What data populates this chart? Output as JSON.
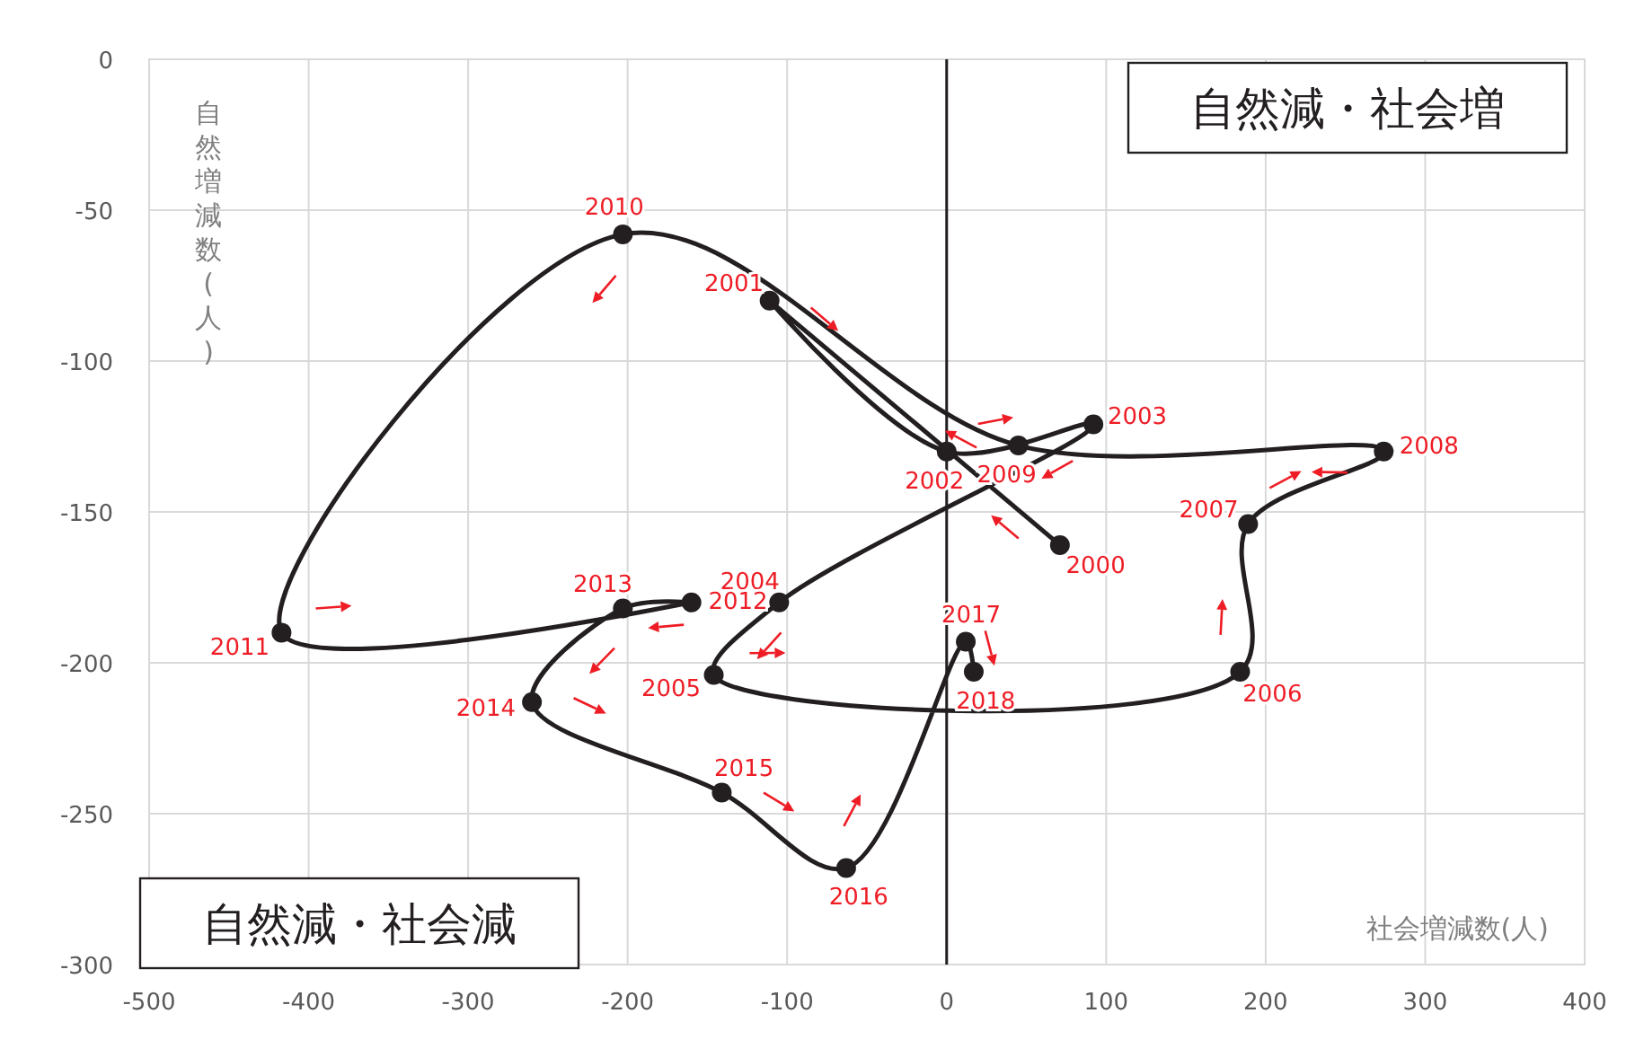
{
  "chart_data": {
    "type": "line",
    "xlabel": "社会増減数(人)",
    "ylabel": "自然増減数(人)",
    "xlim": [
      -500,
      400
    ],
    "xticks": [
      -500,
      -400,
      -300,
      -200,
      -100,
      0,
      100,
      200,
      300,
      400
    ],
    "ylim": [
      -300,
      0
    ],
    "yticks": [
      -300,
      -250,
      -200,
      -150,
      -100,
      -50,
      0
    ],
    "grid": true,
    "marker": "circle",
    "line_style": "solid",
    "series": [
      {
        "color": "#231f20",
        "x": [
          71,
          -111,
          0,
          92,
          -105,
          -146,
          184,
          189,
          274,
          45,
          -203,
          -417,
          -160,
          -203,
          -260,
          -141,
          -63,
          12,
          17
        ],
        "values": [
          -161,
          -80,
          -130,
          -121,
          -180,
          -204,
          -203,
          -154,
          -130,
          -128,
          -58,
          -190,
          -180,
          -182,
          -213,
          -243,
          -268,
          -193,
          -203
        ]
      }
    ],
    "ref_lines": [
      {
        "axis": "x",
        "value": 0,
        "color": "#231f20"
      }
    ],
    "annotations": [
      "自然減・社会増",
      "自然減・社会減",
      {
        "text": "2000",
        "x": 71,
        "y": -161
      },
      {
        "text": "2001",
        "x": -111,
        "y": -80
      },
      {
        "text": "2002",
        "x": 0,
        "y": -130
      },
      {
        "text": "2003",
        "x": 92,
        "y": -121
      },
      {
        "text": "2004",
        "x": -105,
        "y": -180
      },
      {
        "text": "2005",
        "x": -146,
        "y": -204
      },
      {
        "text": "2006",
        "x": 184,
        "y": -203
      },
      {
        "text": "2007",
        "x": 189,
        "y": -154
      },
      {
        "text": "2008",
        "x": 274,
        "y": -130
      },
      {
        "text": "2009",
        "x": 45,
        "y": -128
      },
      {
        "text": "2010",
        "x": -203,
        "y": -58
      },
      {
        "text": "2011",
        "x": -417,
        "y": -190
      },
      {
        "text": "2012",
        "x": -160,
        "y": -180
      },
      {
        "text": "2013",
        "x": -203,
        "y": -182
      },
      {
        "text": "2014",
        "x": -260,
        "y": -213
      },
      {
        "text": "2015",
        "x": -141,
        "y": -243
      },
      {
        "text": "2016",
        "x": -63,
        "y": -268
      },
      {
        "text": "2017",
        "x": 12,
        "y": -193
      },
      {
        "text": "2018",
        "x": 17,
        "y": -203
      }
    ]
  }
}
